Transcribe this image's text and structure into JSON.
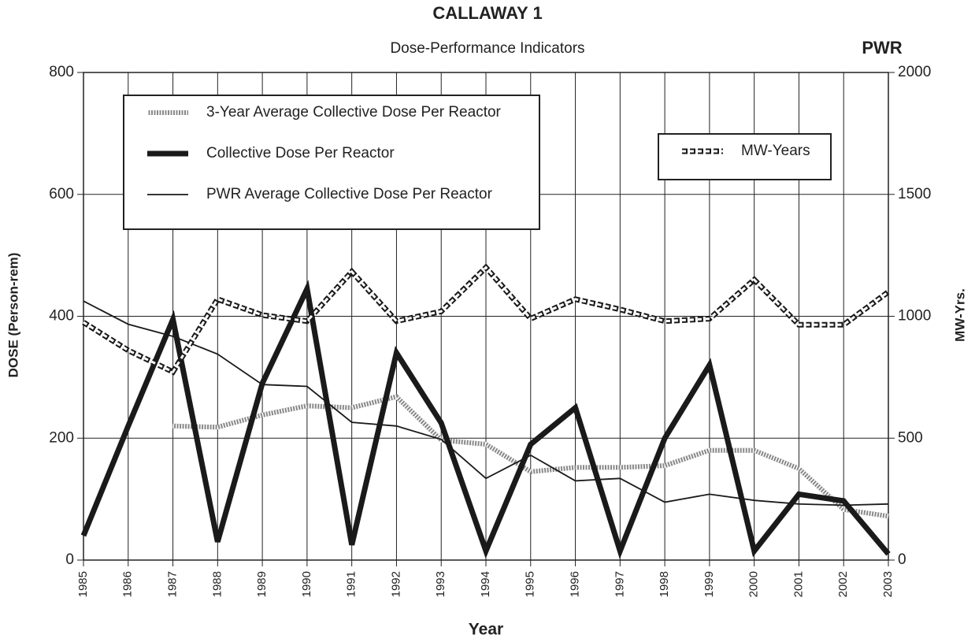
{
  "chart_data": {
    "type": "line",
    "title": "CALLAWAY 1",
    "subtitle": "Dose-Performance Indicators",
    "annotation": "PWR",
    "x_label": "Year",
    "y_label": "DOSE (Person-rem)",
    "y2_label": "MW-Yrs.",
    "categories": [
      "1985",
      "1986",
      "1987",
      "1988",
      "1989",
      "1990",
      "1991",
      "1992",
      "1993",
      "1994",
      "1995",
      "1996",
      "1997",
      "1998",
      "1999",
      "2000",
      "2001",
      "2002",
      "2003"
    ],
    "ylim": [
      0,
      800
    ],
    "yticks": [
      0,
      200,
      400,
      600,
      800
    ],
    "y2lim": [
      0,
      2000
    ],
    "y2ticks": [
      0,
      500,
      1000,
      1500,
      2000
    ],
    "grid": true,
    "series": [
      {
        "name": "3-Year Average Collective Dose Per Reactor",
        "color": "#999999",
        "style": "hatched",
        "values": [
          null,
          null,
          220,
          218,
          238,
          253,
          250,
          268,
          197,
          190,
          145,
          152,
          152,
          155,
          180,
          180,
          150,
          83,
          72
        ]
      },
      {
        "name": "Collective Dose Per Reactor",
        "color": "#1a1a1a",
        "style": "thick",
        "values": [
          40,
          220,
          395,
          30,
          290,
          445,
          25,
          340,
          225,
          15,
          190,
          250,
          15,
          200,
          320,
          15,
          108,
          97,
          10
        ]
      },
      {
        "name": "PWR Average Collective Dose Per Reactor",
        "color": "#1a1a1a",
        "style": "thin",
        "values": [
          425,
          387,
          367,
          338,
          288,
          285,
          226,
          220,
          198,
          134,
          172,
          130,
          134,
          95,
          108,
          98,
          92,
          90,
          92
        ]
      },
      {
        "name": "MW-Years",
        "color": "#1a1a1a",
        "style": "boxed",
        "axis": "y2",
        "values": [
          975,
          860,
          772,
          1070,
          1005,
          980,
          1183,
          980,
          1020,
          1200,
          990,
          1070,
          1028,
          980,
          990,
          1150,
          965,
          965,
          1100
        ]
      }
    ]
  }
}
